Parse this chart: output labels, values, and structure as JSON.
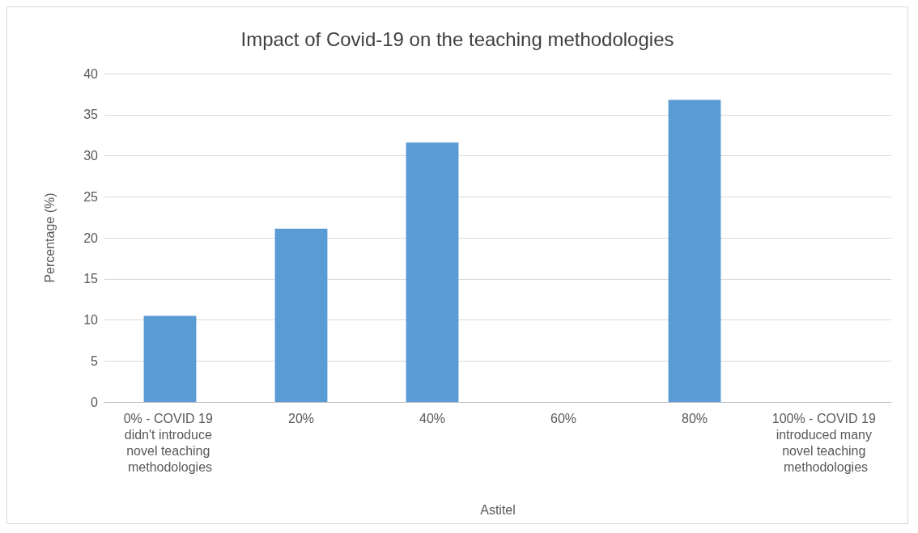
{
  "chart_data": {
    "type": "bar",
    "title": "Impact of Covid-19 on the teaching methodologies",
    "xlabel": "Astitel",
    "ylabel": "Percentage (%)",
    "categories": [
      "0% - COVID 19 didn't introduce novel teaching methodologies",
      "20%",
      "40%",
      "60%",
      "80%",
      "100% - COVID 19 introduced many novel teaching methodologies"
    ],
    "values": [
      10.5,
      21.1,
      31.6,
      0,
      36.8,
      0
    ],
    "color": "#5b9bd5",
    "ylim": [
      0,
      40
    ],
    "yticks": [
      0,
      5,
      10,
      15,
      20,
      25,
      30,
      35,
      40
    ],
    "grid": "y"
  }
}
